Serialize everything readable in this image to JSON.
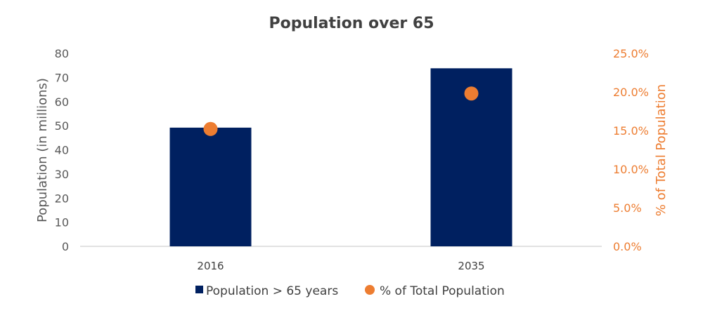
{
  "chart_data": {
    "type": "bar",
    "title": "Population over 65",
    "categories": [
      "2016",
      "2035"
    ],
    "series": [
      {
        "name": "Population > 65 years",
        "type": "bar",
        "axis": "left",
        "color": "#002060",
        "values": [
          49.2,
          73.8
        ]
      },
      {
        "name": "% of Total Population",
        "type": "scatter",
        "axis": "right",
        "color": "#ED7D31",
        "values": [
          15.2,
          19.8
        ]
      }
    ],
    "ylabel": "Population (in millions)",
    "y2label": "% of Total Population",
    "ylim": [
      0,
      80
    ],
    "y2lim": [
      0,
      25
    ],
    "yticks": [
      "0",
      "10",
      "20",
      "30",
      "40",
      "50",
      "60",
      "70",
      "80"
    ],
    "y2ticks": [
      "0.0%",
      "5.0%",
      "10.0%",
      "15.0%",
      "20.0%",
      "25.0%"
    ],
    "grid": false,
    "legend_position": "bottom"
  }
}
